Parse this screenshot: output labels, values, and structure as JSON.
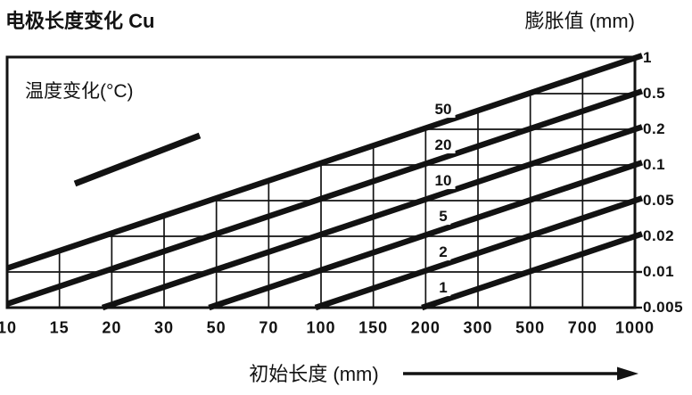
{
  "title_left": "电极长度变化 Cu",
  "title_right": "膨胀值 (mm)",
  "inner_label": "温度变化(°C)",
  "x_axis_label": "初始长度 (mm)",
  "chart_data": {
    "type": "line",
    "title": "电极长度变化 Cu",
    "material": "Cu",
    "xlabel": "初始长度 (mm)",
    "ylabel_right": "膨胀值 (mm)",
    "parameter_label": "温度变化(°C)",
    "x_scale": "log",
    "y_scale": "log",
    "xlim": [
      10,
      1000
    ],
    "ylim": [
      0.005,
      1
    ],
    "x_ticks": [
      "10",
      "15",
      "20",
      "30",
      "50",
      "70",
      "100",
      "150",
      "200",
      "300",
      "500",
      "700",
      "1000"
    ],
    "y_ticks": [
      "1",
      "0.5",
      "0.2",
      "0.1",
      "0.05",
      "0.02",
      "0.01",
      "0.005"
    ],
    "grid": true,
    "legend_position": "none",
    "series": [
      {
        "name": "50",
        "temperature_change_C": 50,
        "expansion_at_1000mm": "1"
      },
      {
        "name": "20",
        "temperature_change_C": 20,
        "expansion_at_1000mm": "0.5"
      },
      {
        "name": "10",
        "temperature_change_C": 10,
        "expansion_at_1000mm": "0.2"
      },
      {
        "name": "5",
        "temperature_change_C": 5,
        "expansion_at_1000mm": "0.1"
      },
      {
        "name": "2",
        "temperature_change_C": 2,
        "expansion_at_1000mm": "0.05"
      },
      {
        "name": "1",
        "temperature_change_C": 1,
        "expansion_at_1000mm": "0.02"
      }
    ],
    "annotations": [
      "slope reference segment below parameter label"
    ]
  },
  "colors": {
    "ink": "#121212",
    "background": "#ffffff"
  }
}
